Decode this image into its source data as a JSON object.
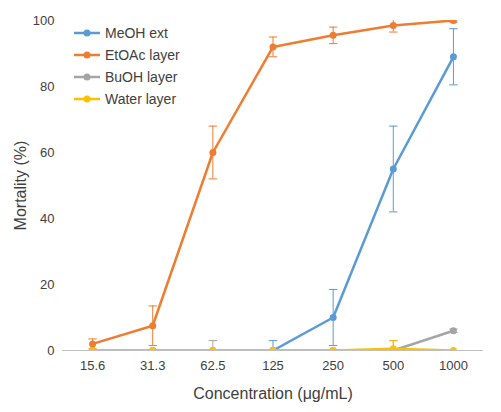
{
  "chart_data": {
    "type": "line",
    "x_label": "Concentration (μg/mL)",
    "y_label": "Mortality (%)",
    "categories": [
      "15.6",
      "31.3",
      "62.5",
      "125",
      "250",
      "500",
      "1000"
    ],
    "series": [
      {
        "name": "MeOH ext",
        "color": "#5b9bd5",
        "values": [
          null,
          null,
          null,
          0,
          10,
          55,
          89
        ],
        "errors": [
          null,
          null,
          null,
          3,
          8.5,
          13,
          8.5
        ]
      },
      {
        "name": "EtOAc layer",
        "color": "#ed7d31",
        "values": [
          2,
          7.5,
          60,
          92,
          95.5,
          98.5,
          100
        ],
        "errors": [
          1.5,
          6,
          8,
          3,
          2.5,
          2,
          0.5
        ]
      },
      {
        "name": "BuOH layer",
        "color": "#a5a5a5",
        "values": [
          0,
          0,
          0,
          0,
          0,
          0,
          6
        ],
        "errors": [
          0,
          0,
          3,
          0,
          0,
          3,
          0.5
        ]
      },
      {
        "name": "Water layer",
        "color": "#ffc000",
        "values": [
          0,
          0,
          0,
          0,
          0,
          0.5,
          0
        ],
        "errors": [
          0,
          0,
          0,
          0,
          0,
          2.5,
          0
        ]
      }
    ],
    "ylim": [
      0,
      100
    ],
    "yticks": [
      0,
      20,
      40,
      60,
      80,
      100
    ],
    "grid": false,
    "legend": "top-left",
    "marker": "circle"
  }
}
